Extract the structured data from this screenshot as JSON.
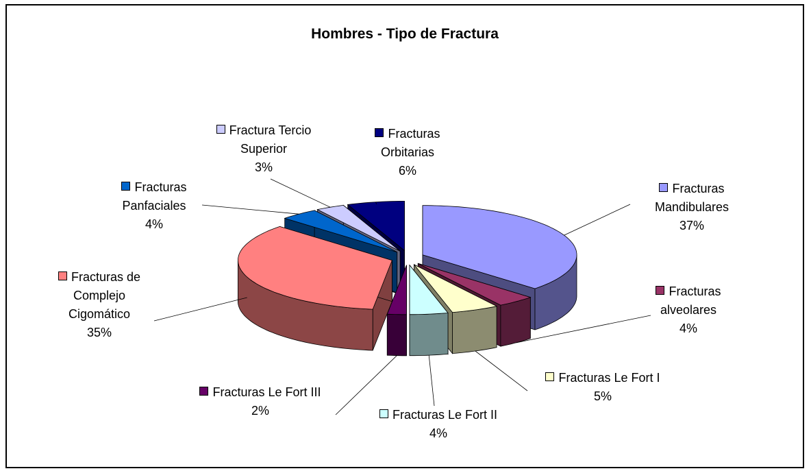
{
  "chart_data": {
    "type": "pie3d",
    "title": "Hombres - Tipo de Fractura",
    "categories": [
      "Fracturas Mandibulares",
      "Fracturas alveolares",
      "Fracturas Le Fort I",
      "Fracturas Le Fort II",
      "Fracturas Le Fort III",
      "Fracturas de Complejo Cigomático",
      "Fracturas Panfaciales",
      "Fractura Tercio Superior",
      "Fracturas Orbitarias"
    ],
    "values": [
      37,
      4,
      5,
      4,
      2,
      35,
      4,
      3,
      6
    ],
    "value_labels": [
      "37%",
      "4%",
      "5%",
      "4%",
      "2%",
      "35%",
      "4%",
      "3%",
      "6%"
    ],
    "colors": [
      "#9999ff",
      "#993366",
      "#ffffcc",
      "#ccffff",
      "#660066",
      "#ff8080",
      "#0066cc",
      "#ccccff",
      "#000080"
    ]
  }
}
